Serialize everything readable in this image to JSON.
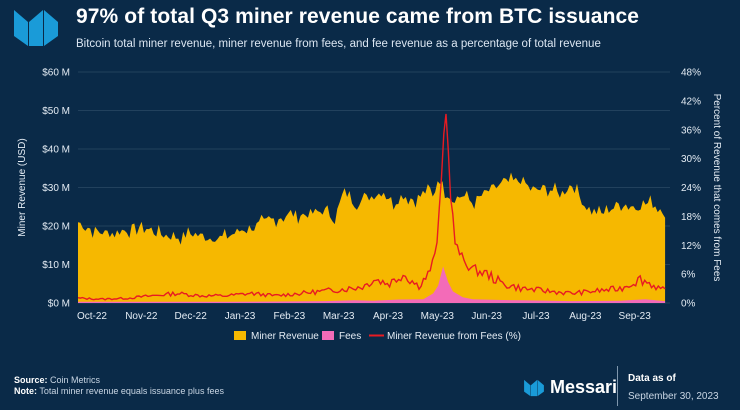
{
  "header": {
    "title": "97% of total Q3 miner revenue came from BTC issuance",
    "subtitle": "Bitcoin total miner revenue, miner revenue from fees, and fee revenue as a percentage of total revenue"
  },
  "footer": {
    "source_label": "Source:",
    "source_value": "Coin Metrics",
    "note_label": "Note:",
    "note_value": "Total miner revenue equals issuance plus fees",
    "brand": "Messari",
    "data_as_of_label": "Data as of",
    "data_as_of_date": "September 30, 2023"
  },
  "colors": {
    "background": "#0a2a48",
    "miner_revenue": "#f6b800",
    "fees": "#f36bb8",
    "fee_pct": "#e81b22",
    "logo": "#1a9bd8"
  },
  "chart_data": {
    "type": "area",
    "title": "97% of total Q3 miner revenue came from BTC issuance",
    "ylabel": "Miner Revenue (USD)",
    "y2label": "Percent of Revenue that comes from Fees",
    "ylim": [
      0,
      60
    ],
    "y2lim": [
      0,
      48
    ],
    "y_ticks": [
      "$0 M",
      "$10 M",
      "$20 M",
      "$30 M",
      "$40 M",
      "$50 M",
      "$60 M"
    ],
    "y2_ticks": [
      "0%",
      "6%",
      "12%",
      "18%",
      "24%",
      "30%",
      "36%",
      "42%",
      "48%"
    ],
    "x_ticks": [
      "Oct-22",
      "Nov-22",
      "Dec-22",
      "Jan-23",
      "Feb-23",
      "Mar-23",
      "Apr-23",
      "May-23",
      "Jun-23",
      "Jul-23",
      "Aug-23",
      "Sep-23"
    ],
    "legend": [
      "Miner Revenue",
      "Fees",
      "Miner Revenue from Fees (%)"
    ],
    "legend_position": "bottom",
    "x_domain": [
      0,
      12
    ],
    "series": [
      {
        "name": "Miner Revenue",
        "unit": "USD millions",
        "x": [
          0,
          0.3,
          0.6,
          1.0,
          1.3,
          1.6,
          2.0,
          2.3,
          2.6,
          3.0,
          3.3,
          3.6,
          4.0,
          4.3,
          4.6,
          5.0,
          5.2,
          5.4,
          5.6,
          5.8,
          6.0,
          6.2,
          6.4,
          6.6,
          6.8,
          7.0,
          7.1,
          7.2,
          7.3,
          7.45,
          7.6,
          7.8,
          8.0,
          8.3,
          8.6,
          9.0,
          9.2,
          9.5,
          9.8,
          10.0,
          10.3,
          10.6,
          11.0,
          11.3,
          11.6,
          11.9
        ],
        "values": [
          21,
          19,
          18,
          19,
          20,
          18,
          17,
          18,
          17,
          17,
          19,
          20,
          22,
          23,
          23,
          24,
          22,
          29,
          26,
          27,
          28,
          29,
          26,
          28,
          27,
          28,
          30,
          27,
          33,
          29,
          27,
          28,
          26,
          29,
          31,
          32,
          29,
          30,
          28,
          31,
          25,
          23,
          26,
          25,
          26,
          24
        ]
      },
      {
        "name": "Fees",
        "unit": "USD millions",
        "x": [
          0,
          1,
          2,
          3,
          4,
          5,
          5.6,
          6.0,
          6.5,
          7.0,
          7.2,
          7.3,
          7.4,
          7.5,
          7.6,
          7.8,
          8.0,
          8.5,
          9.0,
          10.0,
          11.0,
          11.5,
          11.9
        ],
        "values": [
          0.3,
          0.3,
          0.3,
          0.3,
          0.4,
          0.5,
          0.7,
          0.6,
          0.9,
          1.0,
          2.5,
          4.5,
          9.5,
          5.5,
          3.0,
          1.5,
          1.0,
          0.8,
          0.7,
          0.5,
          0.6,
          1.0,
          0.5
        ]
      },
      {
        "name": "Miner Revenue from Fees (%)",
        "unit": "percent",
        "x": [
          0,
          0.5,
          1.0,
          1.5,
          2.0,
          2.5,
          3.0,
          3.5,
          4.0,
          4.5,
          5.0,
          5.5,
          5.8,
          6.0,
          6.3,
          6.6,
          6.9,
          7.1,
          7.25,
          7.35,
          7.45,
          7.55,
          7.65,
          7.8,
          8.0,
          8.3,
          8.6,
          9.0,
          9.5,
          10.0,
          10.5,
          11.0,
          11.4,
          11.6,
          11.9
        ],
        "values": [
          1.0,
          0.8,
          1.0,
          1.5,
          2.0,
          1.5,
          1.5,
          2.0,
          1.5,
          2.0,
          2.5,
          3.0,
          3.5,
          5.0,
          4.0,
          6.0,
          3.5,
          6.0,
          10.0,
          22.0,
          42.0,
          23.0,
          12.0,
          9.0,
          7.0,
          6.0,
          4.0,
          3.0,
          2.5,
          2.0,
          2.5,
          3.0,
          5.0,
          4.0,
          2.5
        ]
      }
    ]
  }
}
